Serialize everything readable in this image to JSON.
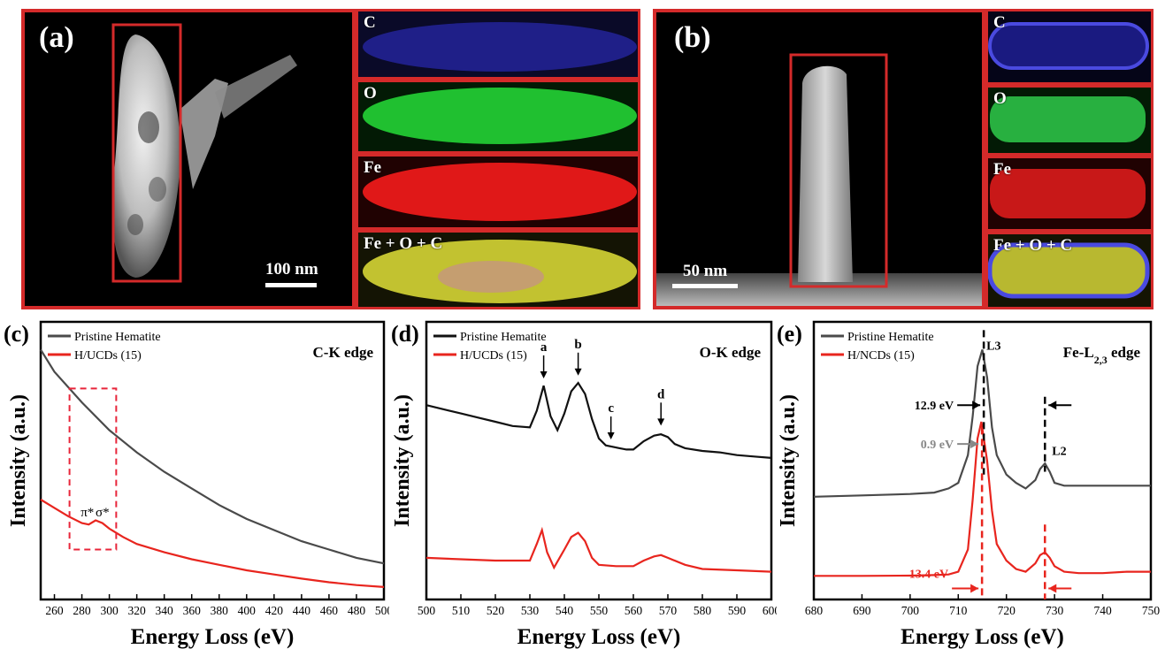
{
  "panel_a": {
    "letter": "(a)",
    "scale": "100 nm",
    "maps": [
      {
        "label": "C",
        "color": "#2a2ad0"
      },
      {
        "label": "O",
        "color": "#22c83a"
      },
      {
        "label": "Fe",
        "color": "#e01e1e"
      },
      {
        "label": "Fe + O + C",
        "color": "#c8c832"
      }
    ]
  },
  "panel_b": {
    "letter": "(b)",
    "scale": "50 nm",
    "maps": [
      {
        "label": "C",
        "color": "#2a2ad0"
      },
      {
        "label": "O",
        "color": "#22c83a"
      },
      {
        "label": "Fe",
        "color": "#e01e1e"
      },
      {
        "label": "Fe + O + C",
        "color": "#c8c832"
      }
    ]
  },
  "chart_data": [
    {
      "type": "line",
      "panel": "(c)",
      "annotation": "C-K edge",
      "xlabel": "Energy Loss  (eV)",
      "ylabel": "Intensity (a.u.)",
      "xlim": [
        250,
        500
      ],
      "xticks": [
        260,
        280,
        300,
        320,
        340,
        360,
        380,
        400,
        420,
        440,
        460,
        480,
        500
      ],
      "peak_labels": [
        "π*",
        "σ*"
      ],
      "series": [
        {
          "name": "Pristine Hematite",
          "color": "#4a4a4a",
          "x": [
            250,
            260,
            280,
            300,
            320,
            340,
            360,
            380,
            400,
            420,
            440,
            460,
            480,
            500
          ],
          "y": [
            0.9,
            0.82,
            0.71,
            0.61,
            0.53,
            0.46,
            0.4,
            0.34,
            0.29,
            0.25,
            0.21,
            0.18,
            0.15,
            0.13
          ]
        },
        {
          "name": "H/UCDs (15)",
          "color": "#e8251e",
          "x": [
            250,
            260,
            270,
            280,
            285,
            290,
            295,
            300,
            310,
            320,
            340,
            360,
            380,
            400,
            420,
            440,
            460,
            480,
            500
          ],
          "y": [
            0.36,
            0.33,
            0.3,
            0.275,
            0.27,
            0.285,
            0.275,
            0.255,
            0.225,
            0.2,
            0.17,
            0.145,
            0.125,
            0.105,
            0.09,
            0.075,
            0.062,
            0.052,
            0.045
          ]
        }
      ]
    },
    {
      "type": "line",
      "panel": "(d)",
      "annotation": "O-K edge",
      "xlabel": "Energy Loss  (eV)",
      "ylabel": "Intensity (a.u.)",
      "xlim": [
        500,
        600
      ],
      "xticks": [
        500,
        510,
        520,
        530,
        540,
        550,
        560,
        570,
        580,
        590,
        600
      ],
      "peak_labels": [
        "a",
        "b",
        "c",
        "d"
      ],
      "series": [
        {
          "name": "Pristine Hematite",
          "color": "#111111",
          "x": [
            500,
            505,
            510,
            515,
            520,
            525,
            530,
            532,
            534,
            536,
            538,
            540,
            542,
            544,
            546,
            548,
            550,
            552,
            554,
            556,
            558,
            560,
            563,
            566,
            568,
            570,
            572,
            575,
            580,
            585,
            590,
            595,
            600
          ],
          "y": [
            0.7,
            0.685,
            0.67,
            0.655,
            0.64,
            0.625,
            0.62,
            0.68,
            0.77,
            0.66,
            0.61,
            0.67,
            0.75,
            0.78,
            0.74,
            0.65,
            0.58,
            0.555,
            0.55,
            0.545,
            0.54,
            0.54,
            0.57,
            0.59,
            0.595,
            0.585,
            0.56,
            0.545,
            0.535,
            0.53,
            0.52,
            0.515,
            0.51
          ]
        },
        {
          "name": "H/UCDs (15)",
          "color": "#e8251e",
          "x": [
            500,
            510,
            520,
            525,
            530,
            532,
            533.5,
            535,
            537,
            540,
            542,
            544,
            546,
            548,
            550,
            555,
            560,
            563,
            566,
            568,
            570,
            575,
            580,
            590,
            600
          ],
          "y": [
            0.15,
            0.145,
            0.14,
            0.14,
            0.14,
            0.2,
            0.25,
            0.17,
            0.115,
            0.18,
            0.225,
            0.24,
            0.21,
            0.15,
            0.125,
            0.12,
            0.12,
            0.14,
            0.155,
            0.16,
            0.15,
            0.125,
            0.11,
            0.105,
            0.1
          ]
        }
      ]
    },
    {
      "type": "line",
      "panel": "(e)",
      "annotation": "Fe-L2,3 edge",
      "xlabel": "Energy Loss  (eV)",
      "ylabel": "Intensity (a.u.)",
      "xlim": [
        680,
        750
      ],
      "xticks": [
        680,
        690,
        700,
        710,
        720,
        730,
        740,
        750
      ],
      "peak_labels": [
        "L3",
        "L2"
      ],
      "widths": [
        "12.9 eV",
        "0.9 eV",
        "13.4 eV"
      ],
      "series": [
        {
          "name": "Pristine Hematite",
          "color": "#4a4a4a",
          "x": [
            680,
            690,
            700,
            705,
            708,
            710,
            712,
            713,
            714,
            715,
            716,
            717,
            718,
            720,
            722,
            724,
            726,
            727,
            728,
            729,
            730,
            732,
            735,
            740,
            745,
            750
          ],
          "y": [
            0.37,
            0.375,
            0.38,
            0.385,
            0.4,
            0.42,
            0.52,
            0.66,
            0.84,
            0.9,
            0.8,
            0.62,
            0.52,
            0.45,
            0.42,
            0.4,
            0.43,
            0.47,
            0.49,
            0.46,
            0.42,
            0.41,
            0.41,
            0.41,
            0.41,
            0.41
          ]
        },
        {
          "name": "H/NCDs (15)",
          "color": "#e8251e",
          "x": [
            680,
            690,
            700,
            705,
            708,
            710,
            712,
            713,
            714,
            714.8,
            716,
            717,
            718,
            720,
            722,
            724,
            726,
            727,
            728,
            729,
            730,
            732,
            735,
            740,
            745,
            750
          ],
          "y": [
            0.085,
            0.085,
            0.086,
            0.088,
            0.09,
            0.1,
            0.18,
            0.36,
            0.58,
            0.64,
            0.5,
            0.32,
            0.2,
            0.14,
            0.11,
            0.1,
            0.13,
            0.16,
            0.17,
            0.15,
            0.12,
            0.1,
            0.095,
            0.095,
            0.1,
            0.1
          ]
        }
      ]
    }
  ]
}
